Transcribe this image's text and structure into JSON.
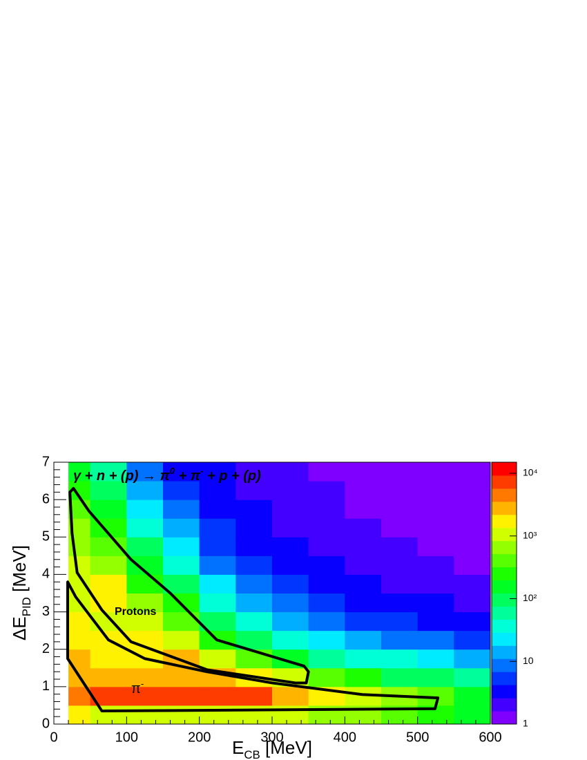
{
  "chart_data": {
    "type": "heatmap",
    "annotation": [
      {
        "text": "γ"
      },
      {
        "text": " + n + (p) → π"
      },
      {
        "text": "0",
        "sup": true
      },
      {
        "text": " + π"
      },
      {
        "text": "-",
        "sup": true
      },
      {
        "text": " + p + (p)"
      }
    ],
    "x_label": [
      {
        "text": "E"
      },
      {
        "text": "CB",
        "sub": true
      },
      {
        "text": " [MeV]"
      }
    ],
    "y_label": [
      {
        "text": "ΔE"
      },
      {
        "text": "PID",
        "sub": true
      },
      {
        "text": " [MeV]"
      }
    ],
    "xlim": [
      0,
      600
    ],
    "xticks": [
      0,
      100,
      200,
      300,
      400,
      500,
      600
    ],
    "ylim": [
      0,
      7
    ],
    "yticks": [
      0,
      1,
      2,
      3,
      4,
      5,
      6,
      7
    ],
    "zlim": [
      1,
      15000
    ],
    "zlog": true,
    "zticks": [
      1,
      10,
      {
        "value": 100,
        "label": "10²"
      },
      {
        "value": 1000,
        "label": "10³"
      },
      {
        "value": 10000,
        "label": "10⁴"
      }
    ],
    "xbins": [
      20,
      50,
      100,
      150,
      200,
      250,
      300,
      350,
      400,
      450,
      500,
      550,
      600
    ],
    "ybins": [
      0,
      0.5,
      1,
      1.5,
      2,
      2.5,
      3,
      3.5,
      4,
      4.5,
      5,
      5.5,
      6,
      6.5,
      7
    ],
    "values": [
      [
        1500,
        5000,
        3000,
        3000,
        1500,
        1500,
        1200,
        1200,
        1000,
        800,
        600,
        500,
        300,
        150
      ],
      [
        1200,
        6000,
        3000,
        2000,
        1500,
        1200,
        1500,
        1500,
        800,
        500,
        300,
        150,
        80,
        50
      ],
      [
        1000,
        8000,
        3000,
        1500,
        2000,
        1200,
        600,
        300,
        150,
        80,
        40,
        25,
        15,
        10
      ],
      [
        1000,
        9000,
        2500,
        2500,
        1200,
        500,
        200,
        80,
        40,
        20,
        12,
        8,
        6,
        4
      ],
      [
        1000,
        8000,
        2500,
        1200,
        300,
        100,
        40,
        20,
        10,
        6,
        5,
        4,
        3,
        3
      ],
      [
        1000,
        6000,
        1500,
        400,
        100,
        30,
        15,
        8,
        5,
        4,
        3,
        3,
        2,
        2
      ],
      [
        900,
        3000,
        1000,
        150,
        40,
        15,
        8,
        5,
        4,
        3,
        2,
        2,
        2,
        2
      ],
      [
        800,
        2000,
        400,
        60,
        20,
        8,
        5,
        3,
        3,
        2,
        2,
        2,
        2,
        1
      ],
      [
        600,
        1200,
        200,
        40,
        12,
        6,
        4,
        3,
        2,
        2,
        2,
        1,
        1,
        1
      ],
      [
        400,
        800,
        120,
        30,
        10,
        5,
        3,
        2,
        2,
        2,
        1,
        1,
        1,
        1
      ],
      [
        250,
        400,
        80,
        20,
        8,
        4,
        3,
        2,
        2,
        1,
        1,
        1,
        1,
        1
      ],
      [
        150,
        150,
        50,
        15,
        6,
        3,
        2,
        2,
        1,
        1,
        1,
        1,
        1,
        1
      ]
    ],
    "cuts": [
      {
        "label": "Protons",
        "x": [
          22,
          27,
          48,
          106,
          160,
          224,
          344,
          350,
          347,
          332,
          211,
          106,
          66,
          32,
          25
        ],
        "y": [
          6.2,
          6.3,
          5.7,
          4.4,
          3.5,
          2.25,
          1.55,
          1.4,
          1.1,
          1.1,
          1.45,
          2.2,
          3.05,
          4.05,
          5.1
        ]
      },
      {
        "label": [
          {
            "text": "π"
          },
          {
            "text": "-",
            "sup": true
          }
        ],
        "x": [
          19,
          19,
          66,
          524,
          528,
          424,
          300,
          210,
          125,
          75,
          30
        ],
        "y": [
          3.8,
          1.75,
          0.35,
          0.41,
          0.7,
          0.79,
          1.1,
          1.4,
          1.75,
          2.25,
          3.4
        ]
      }
    ]
  }
}
